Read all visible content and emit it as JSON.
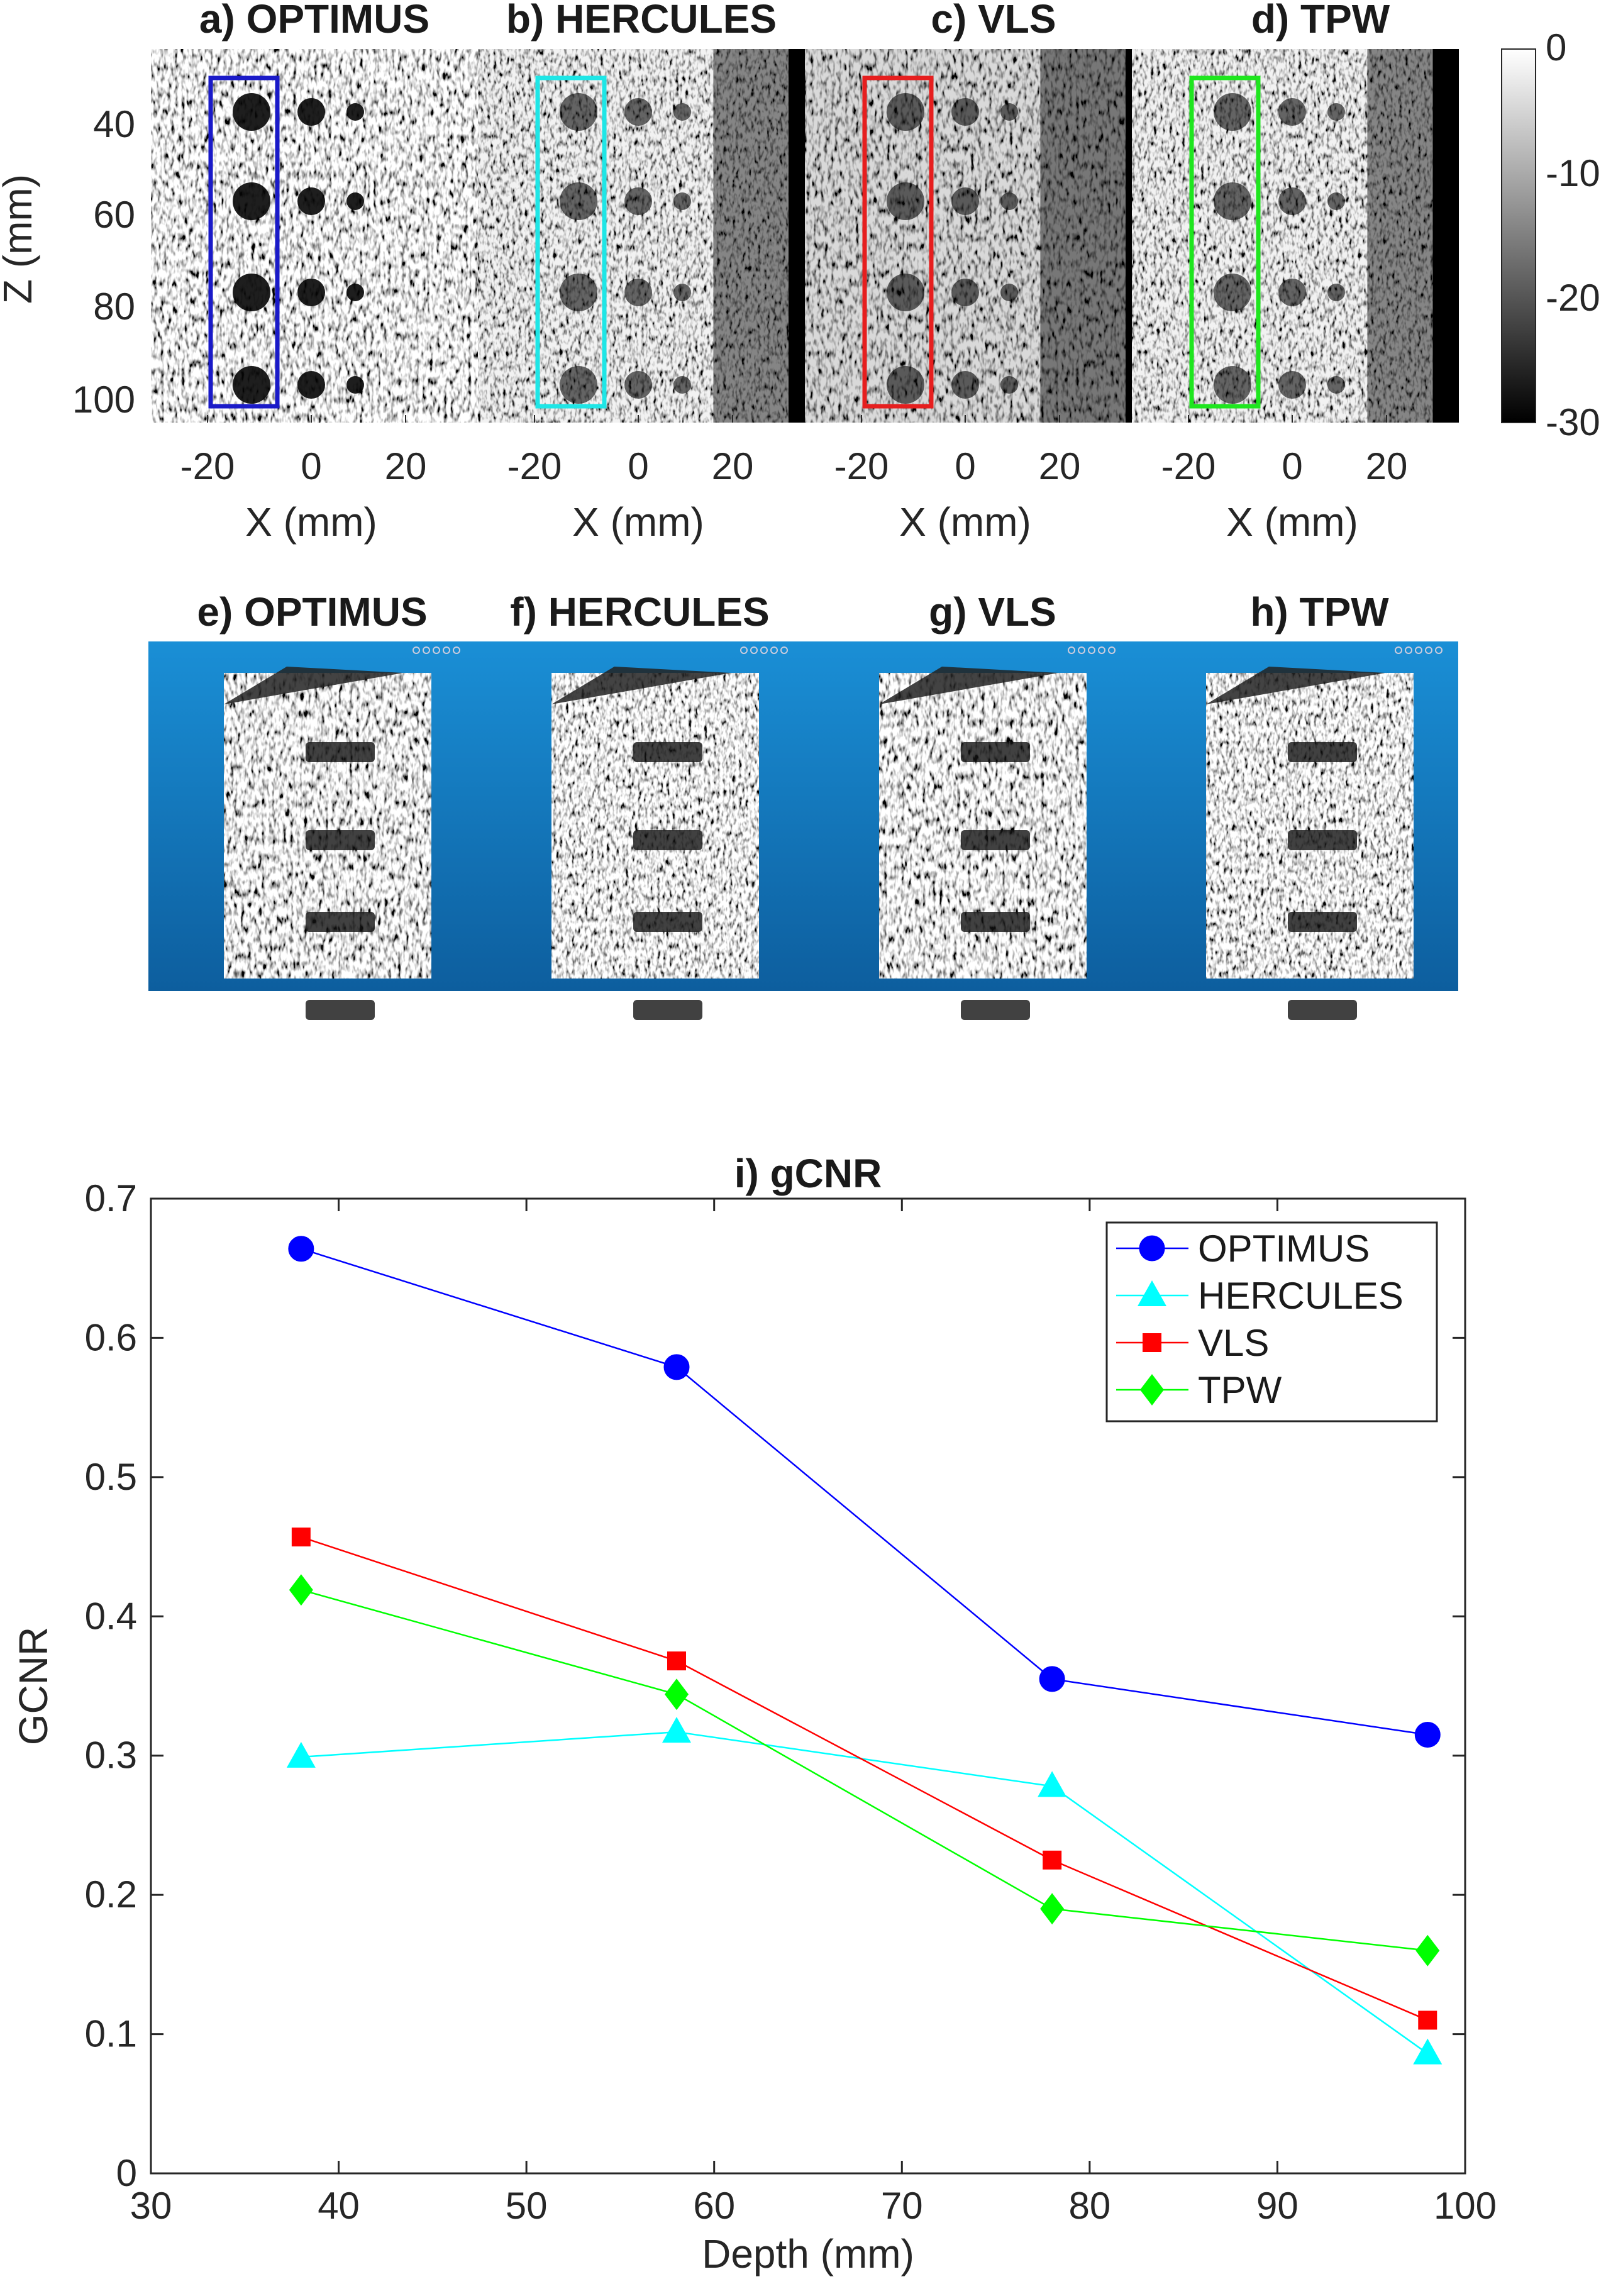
{
  "top_panels": {
    "titles": [
      "a) OPTIMUS",
      "b) HERCULES",
      "c) VLS",
      "d) TPW"
    ],
    "ylabel": "Z (mm)",
    "xlabel": "X (mm)",
    "yticks": [
      "40",
      "60",
      "80",
      "100"
    ],
    "xticks": [
      "-20",
      "0",
      "20"
    ],
    "roi_colors": [
      "#1a1ac8",
      "#1ee6e6",
      "#e61e1e",
      "#1ee61e"
    ]
  },
  "colorbar": {
    "ticks": [
      "0",
      "-10",
      "-20",
      "-30"
    ]
  },
  "volume_panels": {
    "titles": [
      "e) OPTIMUS",
      "f) HERCULES",
      "g) VLS",
      "h) TPW"
    ],
    "background": "#1f86c9"
  },
  "chart_data": {
    "type": "line",
    "title": "i) gCNR",
    "xlabel": "Depth (mm)",
    "ylabel": "GCNR",
    "xlim": [
      30,
      100
    ],
    "ylim": [
      0,
      0.7
    ],
    "xticks": [
      30,
      40,
      50,
      60,
      70,
      80,
      90,
      100
    ],
    "yticks": [
      0,
      0.1,
      0.2,
      0.3,
      0.4,
      0.5,
      0.6,
      0.7
    ],
    "x": [
      38,
      58,
      78,
      98
    ],
    "series": [
      {
        "name": "OPTIMUS",
        "values": [
          0.664,
          0.579,
          0.355,
          0.315
        ],
        "color": "#0000ff",
        "marker": "circle"
      },
      {
        "name": "HERCULES",
        "values": [
          0.299,
          0.317,
          0.278,
          0.086
        ],
        "color": "#00ffff",
        "marker": "triangle"
      },
      {
        "name": "VLS",
        "values": [
          0.457,
          0.368,
          0.225,
          0.11
        ],
        "color": "#ff0000",
        "marker": "square"
      },
      {
        "name": "TPW",
        "values": [
          0.419,
          0.344,
          0.19,
          0.16
        ],
        "color": "#00ff00",
        "marker": "diamond"
      }
    ],
    "legend": "top-right"
  }
}
